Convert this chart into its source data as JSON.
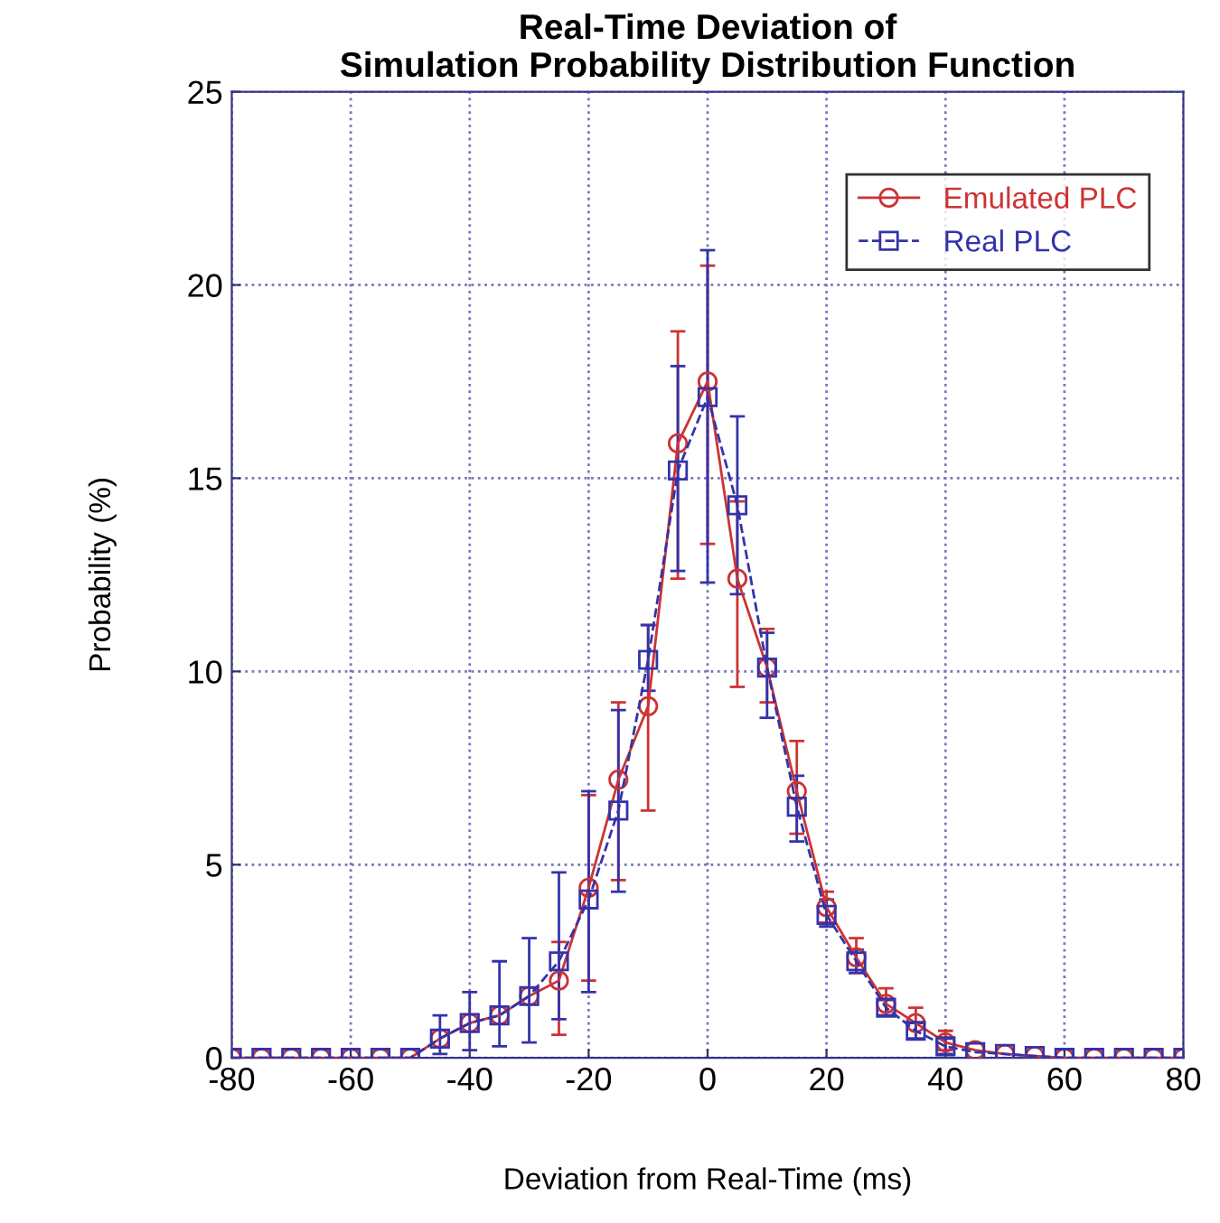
{
  "chart_data": {
    "type": "line",
    "title": "Real-Time Deviation of\nSimulation Probability Distribution Function",
    "xlabel": "Deviation from Real-Time (ms)",
    "ylabel": "Probability (%)",
    "x": [
      -80,
      -75,
      -70,
      -65,
      -60,
      -55,
      -50,
      -45,
      -40,
      -35,
      -30,
      -25,
      -20,
      -15,
      -10,
      -5,
      0,
      5,
      10,
      15,
      20,
      25,
      30,
      35,
      40,
      45,
      50,
      55,
      60,
      65,
      70,
      75,
      80
    ],
    "series": [
      {
        "name": "Emulated PLC",
        "color": "#cc3333",
        "marker": "circle",
        "line_style": "solid",
        "values": [
          0,
          0,
          0,
          0,
          0,
          0,
          0,
          0.5,
          0.9,
          1.1,
          1.6,
          2.0,
          4.4,
          7.2,
          9.1,
          15.9,
          17.5,
          12.4,
          10.1,
          6.9,
          3.9,
          2.6,
          1.4,
          0.9,
          0.4,
          0.2,
          0.1,
          0.05,
          0,
          0,
          0,
          0,
          0
        ],
        "errors": [
          null,
          null,
          null,
          null,
          null,
          null,
          null,
          null,
          null,
          null,
          null,
          [
            0.6,
            3.0
          ],
          [
            2.0,
            6.8
          ],
          [
            4.6,
            9.2
          ],
          [
            6.4,
            11.2
          ],
          [
            12.4,
            18.8
          ],
          [
            13.3,
            20.5
          ],
          [
            9.6,
            14.4
          ],
          [
            9.2,
            11.1
          ],
          [
            5.8,
            8.2
          ],
          [
            3.5,
            4.3
          ],
          [
            2.2,
            3.1
          ],
          [
            1.1,
            1.8
          ],
          [
            0.5,
            1.3
          ],
          [
            0.2,
            0.7
          ],
          null,
          null,
          null,
          null,
          null,
          null,
          null,
          null
        ]
      },
      {
        "name": "Real PLC",
        "color": "#3333aa",
        "marker": "square",
        "line_style": "dashed",
        "values": [
          0,
          0,
          0,
          0,
          0,
          0,
          0,
          0.5,
          0.9,
          1.1,
          1.6,
          2.5,
          4.1,
          6.4,
          10.3,
          15.2,
          17.1,
          14.3,
          10.1,
          6.5,
          3.7,
          2.5,
          1.3,
          0.7,
          0.3,
          0.15,
          0.1,
          0.05,
          0,
          0,
          0,
          0,
          0
        ],
        "errors": [
          null,
          null,
          null,
          null,
          null,
          null,
          null,
          [
            0.1,
            1.1
          ],
          [
            0.2,
            1.7
          ],
          [
            0.3,
            2.5
          ],
          [
            0.4,
            3.1
          ],
          [
            1.0,
            4.8
          ],
          [
            1.7,
            6.9
          ],
          [
            4.3,
            9.0
          ],
          [
            9.5,
            11.2
          ],
          [
            12.6,
            17.9
          ],
          [
            12.3,
            20.9
          ],
          [
            12.0,
            16.6
          ],
          [
            8.8,
            11.0
          ],
          [
            5.6,
            7.3
          ],
          [
            3.4,
            4.1
          ],
          [
            2.2,
            2.8
          ],
          [
            1.1,
            1.5
          ],
          [
            0.5,
            0.9
          ],
          [
            0.1,
            0.5
          ],
          null,
          null,
          null,
          null,
          null,
          null,
          null,
          null
        ]
      }
    ],
    "xlim": [
      -80,
      80
    ],
    "xticks": [
      -80,
      -60,
      -40,
      -20,
      0,
      20,
      40,
      60,
      80
    ],
    "ylim": [
      0,
      25
    ],
    "yticks": [
      0,
      5,
      10,
      15,
      20,
      25
    ],
    "grid": true,
    "legend": "top right"
  }
}
